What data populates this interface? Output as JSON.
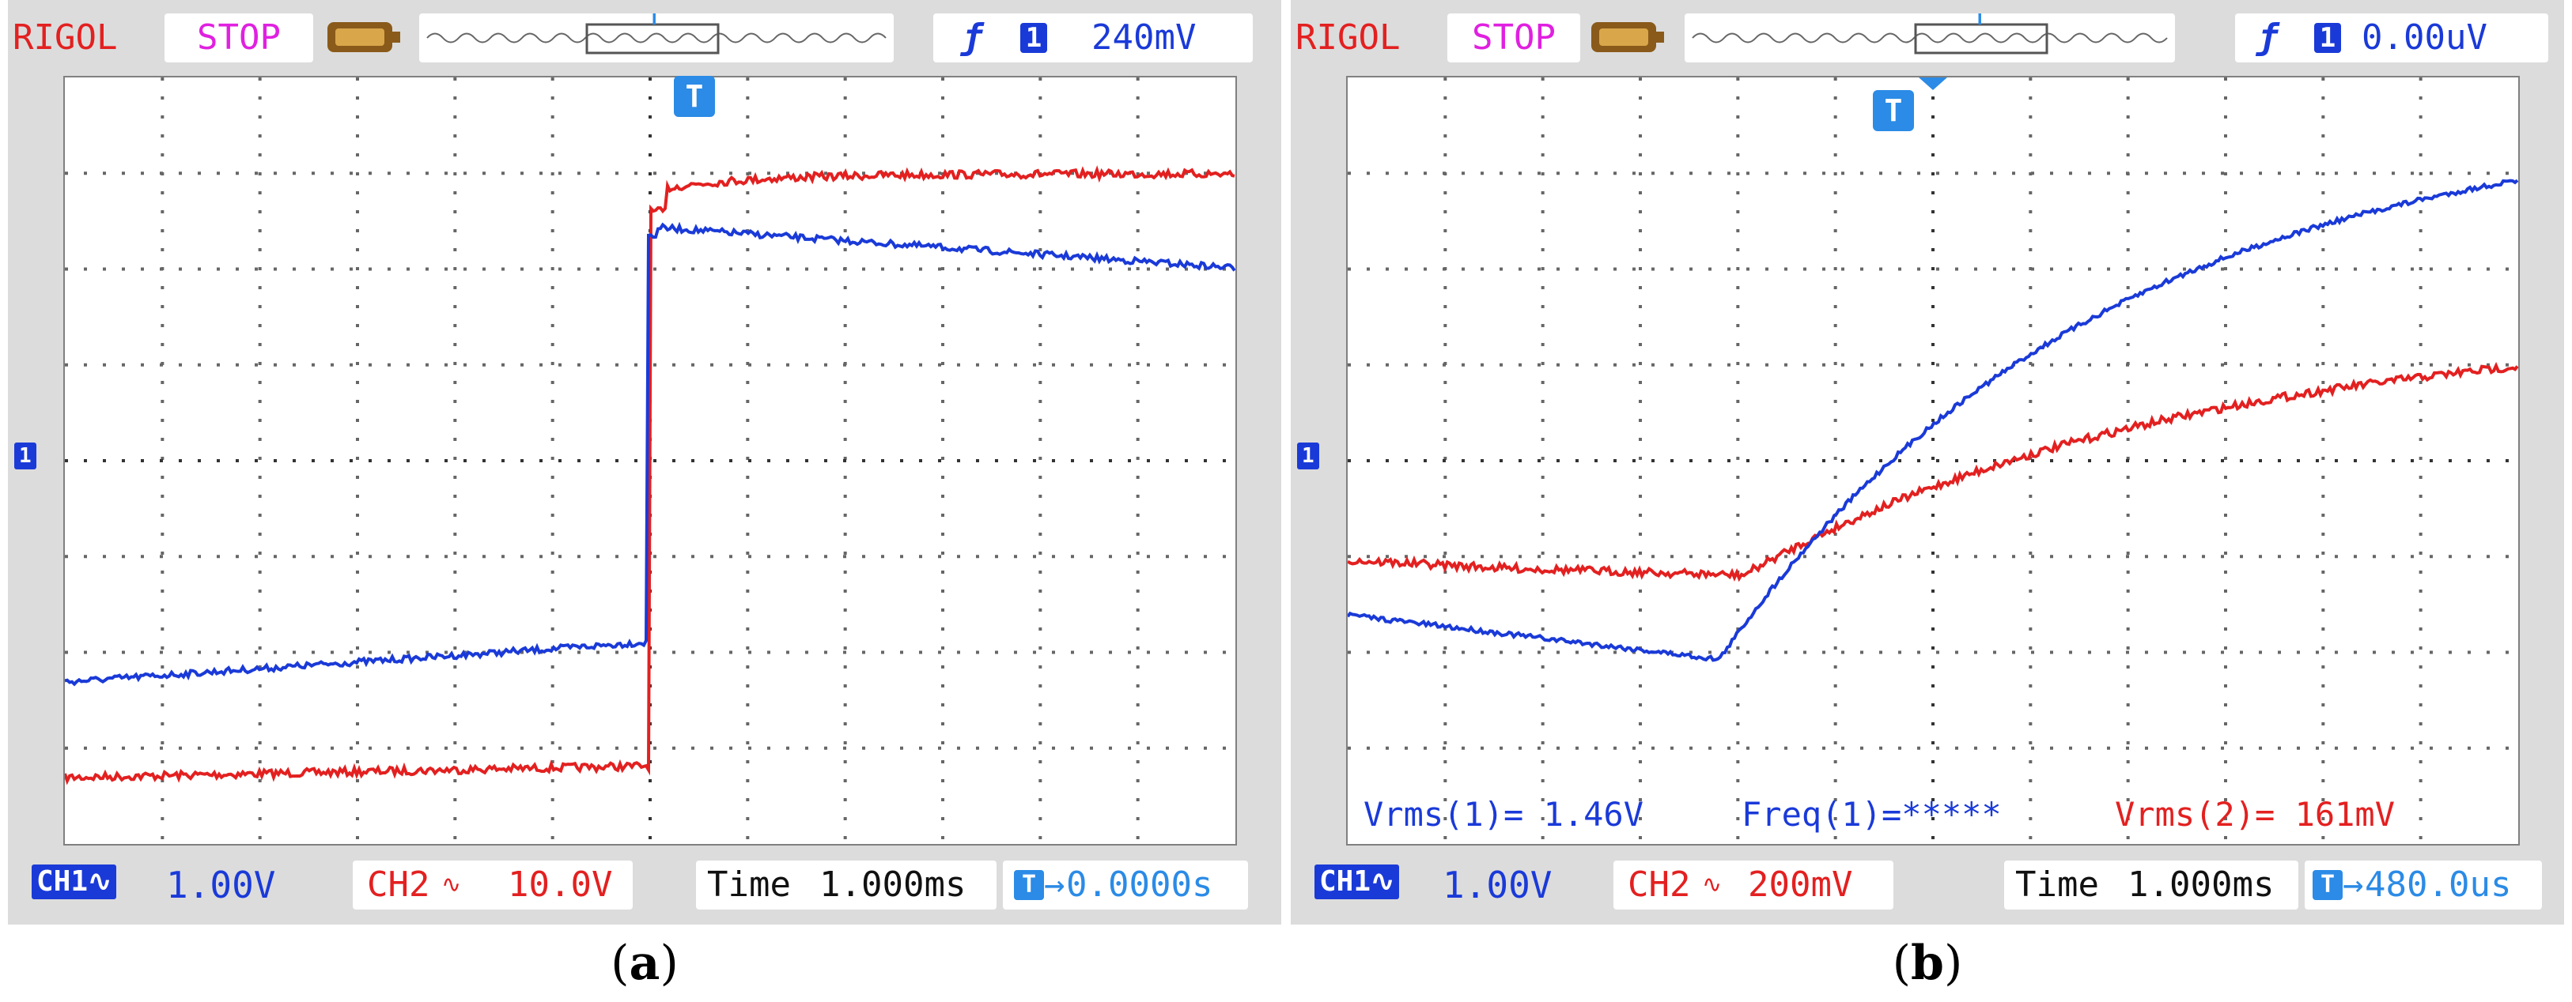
{
  "panels": [
    {
      "brand": "RIGOL",
      "state": "STOP",
      "trigger": {
        "slope_icon": "rising-edge-icon",
        "channel": "1",
        "level": "240mV"
      },
      "ch1": {
        "label": "CH1",
        "coupling_icon": "ac-coupling-icon",
        "scale": "1.00V"
      },
      "ch2": {
        "label": "CH2",
        "coupling_icon": "ac-coupling-icon",
        "scale": "10.0V"
      },
      "time": {
        "label": "Time",
        "value": "1.000ms"
      },
      "trigger_offset": "0.0000s",
      "caption_letter": "a",
      "measurements": []
    },
    {
      "brand": "RIGOL",
      "state": "STOP",
      "trigger": {
        "slope_icon": "rising-edge-icon",
        "channel": "1",
        "level": "0.00uV"
      },
      "ch1": {
        "label": "CH1",
        "coupling_icon": "ac-coupling-icon",
        "scale": "1.00V"
      },
      "ch2": {
        "label": "CH2",
        "coupling_icon": "ac-coupling-icon",
        "scale": "200mV"
      },
      "time": {
        "label": "Time",
        "value": "1.000ms"
      },
      "trigger_offset": "480.0us",
      "caption_letter": "b",
      "measurements": [
        "Vrms(1)= 1.46V",
        "Freq(1)=*****",
        "Vrms(2)= 161mV"
      ]
    }
  ],
  "colors": {
    "brand": "#e32020",
    "stop": "#e020e0",
    "ch1": "#1a3ad8",
    "ch2": "#e32020",
    "trigger_marker": "#2b8be6",
    "grid_dots": "#555555"
  }
}
